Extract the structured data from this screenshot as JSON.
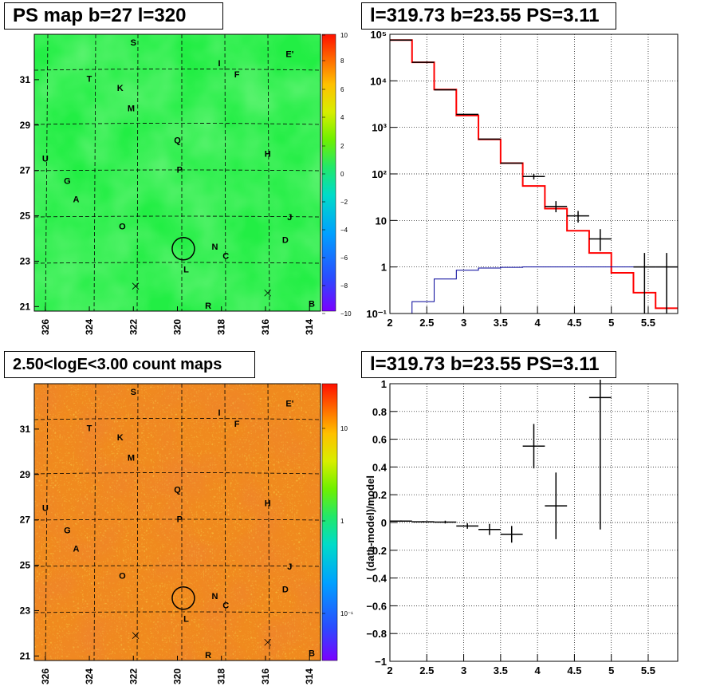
{
  "panels": {
    "ps_map": {
      "title": "PS map b=27 l=320",
      "colorbar_ticks": [
        "10",
        "8",
        "6",
        "4",
        "2",
        "0",
        "−2",
        "−4",
        "−6",
        "−8",
        "−10"
      ],
      "x_ticks": [
        "326",
        "324",
        "322",
        "320",
        "318",
        "316",
        "314"
      ],
      "y_ticks": [
        "31",
        "29",
        "27",
        "25",
        "23",
        "21"
      ],
      "field_color": "#22ee44"
    },
    "count_map": {
      "title": "2.50<logE<3.00 count maps",
      "colorbar_ticks": [
        "10",
        "1",
        "10⁻¹"
      ],
      "x_ticks": [
        "326",
        "324",
        "322",
        "320",
        "318",
        "316",
        "314"
      ],
      "y_ticks": [
        "31",
        "29",
        "27",
        "25",
        "23",
        "21"
      ],
      "field_color": "#f08a1e"
    },
    "spectrum": {
      "title": "l=319.73 b=23.55 PS=3.11",
      "x_ticks": [
        "2",
        "2.5",
        "3",
        "3.5",
        "4",
        "4.5",
        "5",
        "5.5"
      ],
      "y_ticks": [
        "10⁵",
        "10⁴",
        "10³",
        "10²",
        "10",
        "1",
        "10⁻¹"
      ]
    },
    "residual": {
      "title": "l=319.73 b=23.55 PS=3.11",
      "ylabel": "(data-model)/model",
      "x_ticks": [
        "2",
        "2.5",
        "3",
        "3.5",
        "4",
        "4.5",
        "5",
        "5.5"
      ],
      "y_ticks": [
        "1",
        "0.8",
        "0.6",
        "0.4",
        "0.2",
        "0",
        "−0.2",
        "−0.4",
        "−0.6",
        "−0.8",
        "−1"
      ]
    }
  },
  "sources": [
    {
      "label": "S",
      "l": 322.0,
      "b": 32.5
    },
    {
      "label": "E'",
      "l": 314.9,
      "b": 32.0
    },
    {
      "label": "I",
      "l": 318.1,
      "b": 31.6
    },
    {
      "label": "F",
      "l": 317.3,
      "b": 31.1
    },
    {
      "label": "T",
      "l": 324.0,
      "b": 30.9
    },
    {
      "label": "K",
      "l": 322.6,
      "b": 30.5
    },
    {
      "label": "M",
      "l": 322.1,
      "b": 29.6
    },
    {
      "label": "Q",
      "l": 320.0,
      "b": 28.2
    },
    {
      "label": "H",
      "l": 315.9,
      "b": 27.6
    },
    {
      "label": "U",
      "l": 326.0,
      "b": 27.4
    },
    {
      "label": "P",
      "l": 319.9,
      "b": 26.9
    },
    {
      "label": "G",
      "l": 325.0,
      "b": 26.4
    },
    {
      "label": "A",
      "l": 324.6,
      "b": 25.6
    },
    {
      "label": "J",
      "l": 314.9,
      "b": 24.8
    },
    {
      "label": "O",
      "l": 322.5,
      "b": 24.4
    },
    {
      "label": "D",
      "l": 315.1,
      "b": 23.8
    },
    {
      "label": "N",
      "l": 318.3,
      "b": 23.5
    },
    {
      "label": "C",
      "l": 317.8,
      "b": 23.1
    },
    {
      "label": "L",
      "l": 319.6,
      "b": 22.5
    },
    {
      "label": "R",
      "l": 318.6,
      "b": 20.9
    },
    {
      "label": "B",
      "l": 313.9,
      "b": 21.0
    }
  ],
  "crosses": [
    {
      "l": 321.9,
      "b": 21.9
    },
    {
      "l": 315.9,
      "b": 21.6
    }
  ],
  "target": {
    "l": 319.73,
    "b": 23.55
  },
  "chart_data": [
    {
      "type": "line",
      "panel": "spectrum",
      "title": "l=319.73 b=23.55 PS=3.11",
      "xlim": [
        2,
        5.9
      ],
      "ylim": [
        0.1,
        100000
      ],
      "log_y": true,
      "grid": true,
      "series": [
        {
          "color": "#ff0000",
          "edges": [
            2,
            2.3,
            2.6,
            2.9,
            3.2,
            3.5,
            3.8,
            4.1,
            4.4,
            4.7,
            5.0,
            5.3,
            5.6,
            5.9
          ],
          "values": [
            75000,
            25000,
            6500,
            1800,
            550,
            170,
            55,
            18,
            6,
            2,
            0.75,
            0.28,
            0.13
          ]
        },
        {
          "color": "#000099",
          "edges": [
            2,
            2.3,
            2.6,
            2.9,
            3.2,
            3.5,
            3.8,
            4.1,
            4.4,
            4.7,
            5.0,
            5.3,
            5.6,
            5.9
          ],
          "values": [
            0.1,
            0.18,
            0.55,
            0.85,
            0.95,
            0.98,
            1.0,
            1.0,
            1.0,
            1.0,
            1.0,
            1.0,
            1.0
          ]
        }
      ],
      "points": [
        {
          "x": 2.15,
          "y": 75000,
          "xerr": 0.15
        },
        {
          "x": 2.45,
          "y": 25000,
          "xerr": 0.15
        },
        {
          "x": 2.75,
          "y": 6400,
          "xerr": 0.15
        },
        {
          "x": 3.05,
          "y": 1900,
          "xerr": 0.15
        },
        {
          "x": 3.35,
          "y": 560,
          "xerr": 0.15
        },
        {
          "x": 3.65,
          "y": 170,
          "xerr": 0.15
        },
        {
          "x": 3.95,
          "y": 88,
          "xerr": 0.15,
          "ylo": 76,
          "yhi": 100
        },
        {
          "x": 4.25,
          "y": 20,
          "xerr": 0.15,
          "ylo": 15,
          "yhi": 26
        },
        {
          "x": 4.55,
          "y": 12.5,
          "xerr": 0.15,
          "ylo": 9,
          "yhi": 16
        },
        {
          "x": 4.85,
          "y": 4,
          "xerr": 0.15,
          "ylo": 2.2,
          "yhi": 6.5
        },
        {
          "x": 5.45,
          "y": 1,
          "xerr": 0.15,
          "ylo": 0.1,
          "yhi": 2
        },
        {
          "x": 5.75,
          "y": 1,
          "xerr": 0.15,
          "ylo": 0.1,
          "yhi": 2
        }
      ]
    },
    {
      "type": "scatter",
      "panel": "residual",
      "title": "l=319.73 b=23.55 PS=3.11",
      "ylabel": "(data-model)/model",
      "xlim": [
        2,
        5.9
      ],
      "ylim": [
        -1,
        1
      ],
      "grid": true,
      "points": [
        {
          "x": 2.15,
          "y": 0.01,
          "xerr": 0.15,
          "yerr": 0.005
        },
        {
          "x": 2.45,
          "y": 0.005,
          "xerr": 0.15,
          "yerr": 0.005
        },
        {
          "x": 2.75,
          "y": 0.003,
          "xerr": 0.15,
          "yerr": 0.01
        },
        {
          "x": 3.05,
          "y": -0.025,
          "xerr": 0.15,
          "yerr": 0.02
        },
        {
          "x": 3.35,
          "y": -0.05,
          "xerr": 0.15,
          "yerr": 0.04
        },
        {
          "x": 3.65,
          "y": -0.085,
          "xerr": 0.15,
          "yerr": 0.06
        },
        {
          "x": 3.95,
          "y": 0.55,
          "xerr": 0.15,
          "yerr": 0.16
        },
        {
          "x": 4.25,
          "y": 0.12,
          "xerr": 0.15,
          "yerr": 0.24
        },
        {
          "x": 4.85,
          "y": 0.9,
          "xerr": 0.15,
          "yerr": 0.95
        }
      ]
    }
  ]
}
